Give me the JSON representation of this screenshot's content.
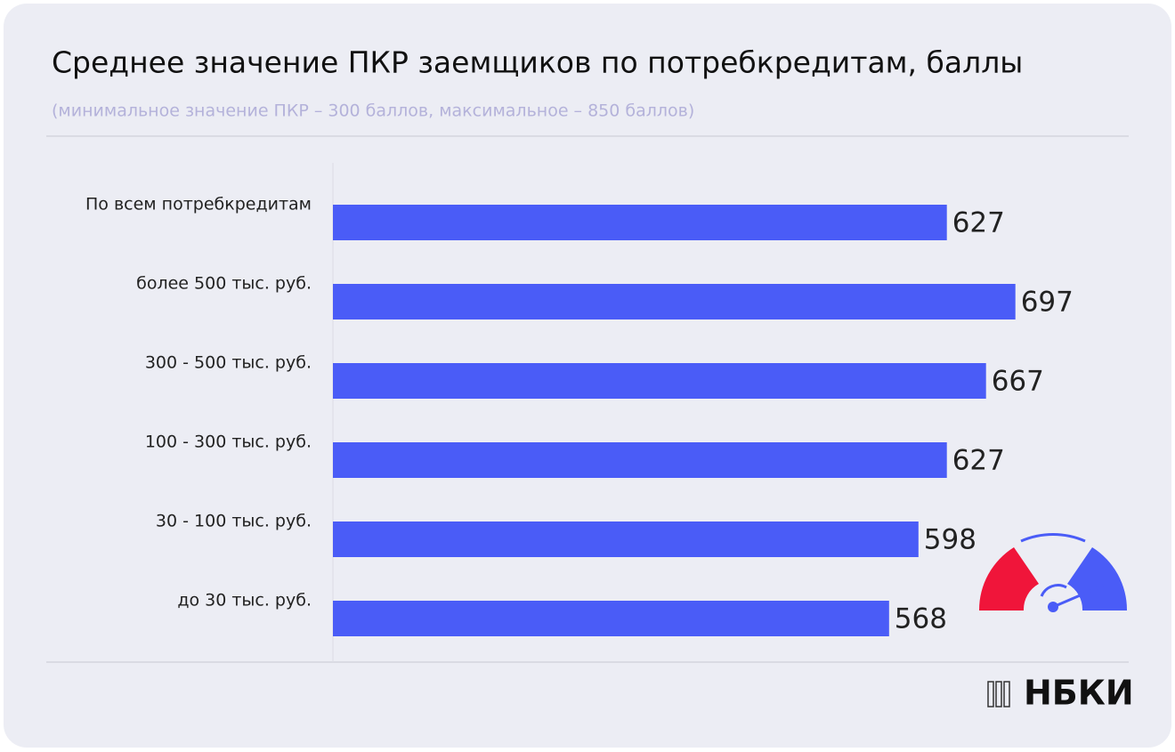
{
  "chart_data": {
    "type": "bar",
    "orientation": "horizontal",
    "title": "Среднее значение ПКР заемщиков по потребкредитам, баллы",
    "subtitle": "(минимальное значение  ПКР – 300 баллов, максимальное – 850 баллов)",
    "categories": [
      "По всем потребкредитам",
      "более 500 тыс. руб.",
      "300 - 500 тыс. руб.",
      "100 - 300 тыс. руб.",
      "30 - 100 тыс. руб.",
      "до 30 тыс. руб."
    ],
    "values": [
      627,
      697,
      667,
      627,
      598,
      568
    ],
    "color": "#4a5cf7",
    "xlim": [
      0,
      800
    ],
    "brand": "НБКИ"
  }
}
